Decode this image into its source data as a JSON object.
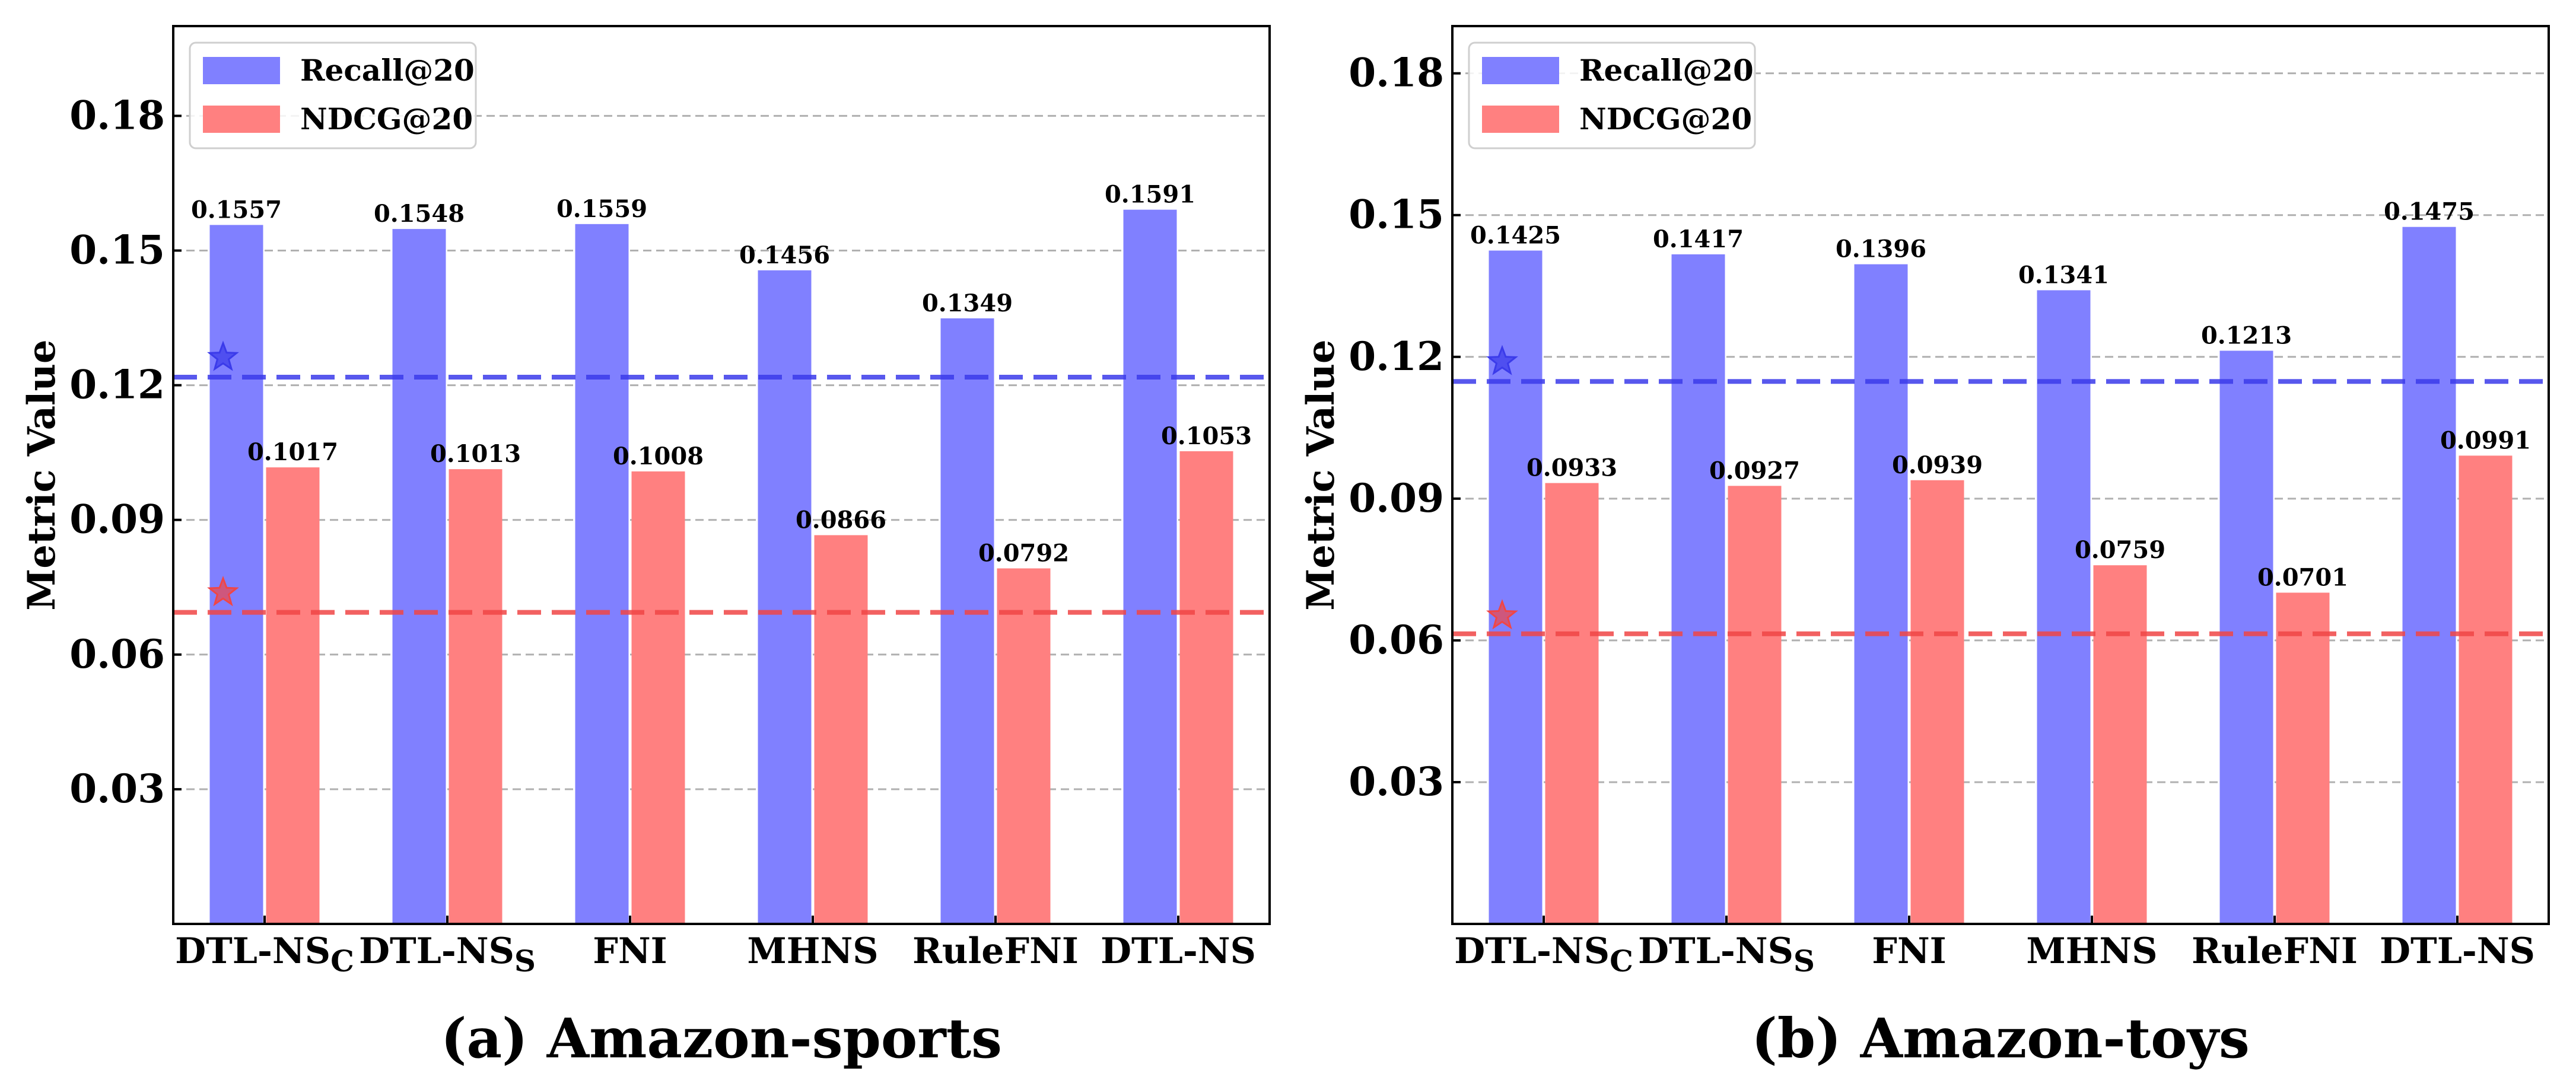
{
  "colors": {
    "recall": "#8080ff",
    "ndcg": "#ff8080",
    "recall_ref": "#3b3bea",
    "ndcg_ref": "#f04646",
    "grid": "#b0b0b0"
  },
  "chart_data": [
    {
      "type": "bar",
      "title": "(a) Amazon-sports",
      "xlabel": "",
      "ylabel": "Metric Value",
      "ylim": [
        0,
        0.2
      ],
      "yticks": [
        "0.03",
        "0.06",
        "0.09",
        "0.12",
        "0.15",
        "0.18"
      ],
      "grid": true,
      "legend_position": "top-left",
      "categories": [
        {
          "base": "DTL-NS",
          "sub": "C"
        },
        {
          "base": "DTL-NS",
          "sub": "S"
        },
        {
          "base": "FNI",
          "sub": ""
        },
        {
          "base": "MHNS",
          "sub": ""
        },
        {
          "base": "RuleFNI",
          "sub": ""
        },
        {
          "base": "DTL-NS",
          "sub": ""
        }
      ],
      "series": [
        {
          "name": "Recall@20",
          "color_key": "recall",
          "values": [
            0.1557,
            0.1548,
            0.1559,
            0.1456,
            0.1349,
            0.1591
          ],
          "labels": [
            "0.1557",
            "0.1548",
            "0.1559",
            "0.1456",
            "0.1349",
            "0.1591"
          ]
        },
        {
          "name": "NDCG@20",
          "color_key": "ndcg",
          "values": [
            0.1017,
            0.1013,
            0.1008,
            0.0866,
            0.0792,
            0.1053
          ],
          "labels": [
            "0.1017",
            "0.1013",
            "0.1008",
            "0.0866",
            "0.0792",
            "0.1053"
          ]
        }
      ],
      "reference_lines": [
        {
          "series": "Recall@20",
          "value": 0.1218,
          "marker_value": 0.1262,
          "color_key": "recall_ref"
        },
        {
          "series": "NDCG@20",
          "value": 0.0694,
          "marker_value": 0.0738,
          "color_key": "ndcg_ref"
        }
      ]
    },
    {
      "type": "bar",
      "title": "(b) Amazon-toys",
      "xlabel": "",
      "ylabel": "Metric Value",
      "ylim": [
        0,
        0.19
      ],
      "yticks": [
        "0.03",
        "0.06",
        "0.09",
        "0.12",
        "0.15",
        "0.18"
      ],
      "grid": true,
      "legend_position": "top-left",
      "categories": [
        {
          "base": "DTL-NS",
          "sub": "C"
        },
        {
          "base": "DTL-NS",
          "sub": "S"
        },
        {
          "base": "FNI",
          "sub": ""
        },
        {
          "base": "MHNS",
          "sub": ""
        },
        {
          "base": "RuleFNI",
          "sub": ""
        },
        {
          "base": "DTL-NS",
          "sub": ""
        }
      ],
      "series": [
        {
          "name": "Recall@20",
          "color_key": "recall",
          "values": [
            0.1425,
            0.1417,
            0.1396,
            0.1341,
            0.1213,
            0.1475
          ],
          "labels": [
            "0.1425",
            "0.1417",
            "0.1396",
            "0.1341",
            "0.1213",
            "0.1475"
          ]
        },
        {
          "name": "NDCG@20",
          "color_key": "ndcg",
          "values": [
            0.0933,
            0.0927,
            0.0939,
            0.0759,
            0.0701,
            0.0991
          ],
          "labels": [
            "0.0933",
            "0.0927",
            "0.0939",
            "0.0759",
            "0.0701",
            "0.0991"
          ]
        }
      ],
      "reference_lines": [
        {
          "series": "Recall@20",
          "value": 0.1148,
          "marker_value": 0.119,
          "color_key": "recall_ref"
        },
        {
          "series": "NDCG@20",
          "value": 0.0614,
          "marker_value": 0.0652,
          "color_key": "ndcg_ref"
        }
      ]
    }
  ]
}
